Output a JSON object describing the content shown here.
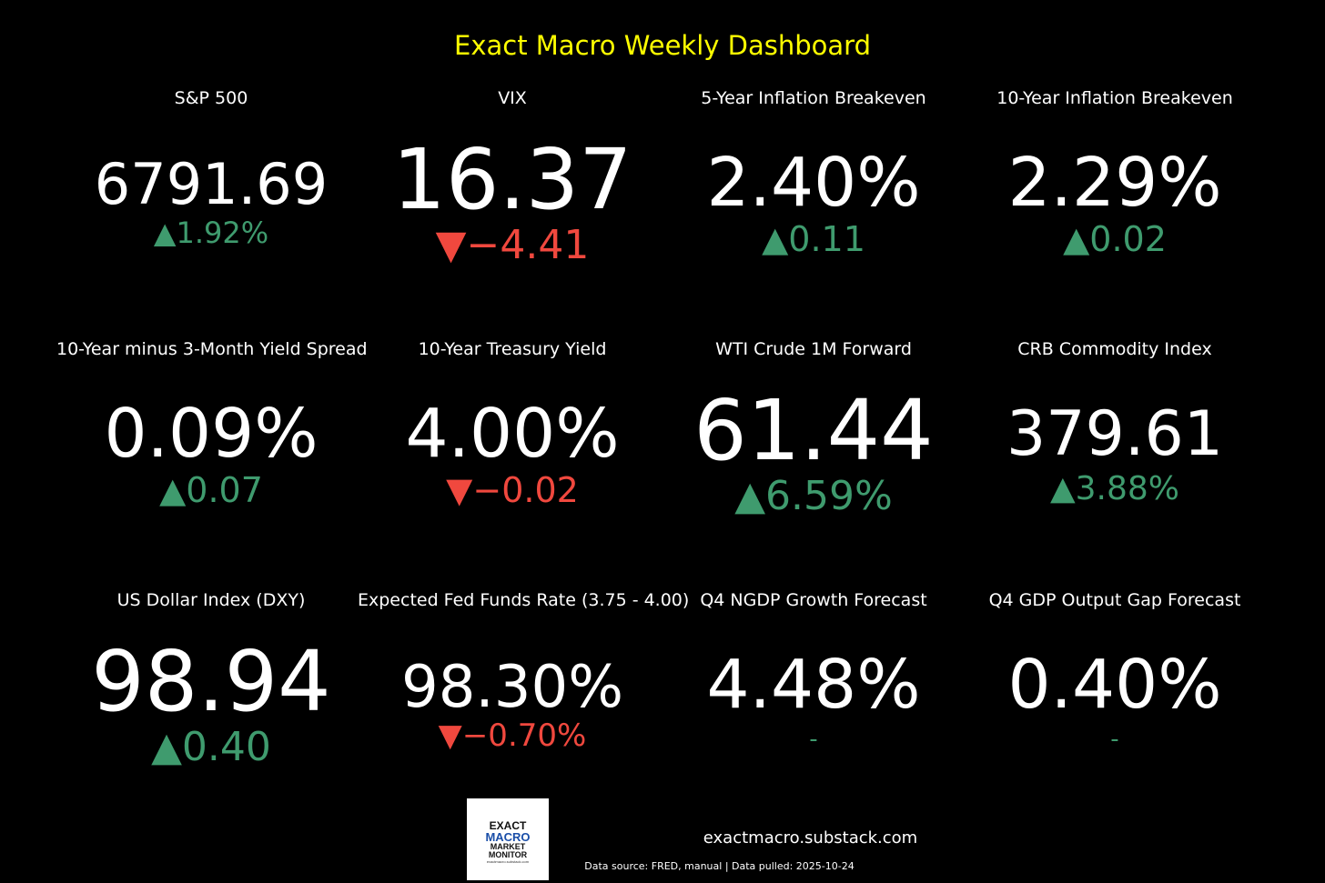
{
  "header": {
    "title": "Exact Macro Weekly Dashboard"
  },
  "tiles": [
    {
      "label": "S&P 500",
      "value": "6791.69",
      "change": "▲1.92%",
      "direction": "up"
    },
    {
      "label": "VIX",
      "value": "16.37",
      "change": "▼−4.41",
      "direction": "down"
    },
    {
      "label": "5-Year Inflation Breakeven",
      "value": "2.40%",
      "change": "▲0.11",
      "direction": "up"
    },
    {
      "label": "10-Year Inflation Breakeven",
      "value": "2.29%",
      "change": "▲0.02",
      "direction": "up"
    },
    {
      "label": "10-Year minus 3-Month Yield Spread",
      "value": "0.09%",
      "change": "▲0.07",
      "direction": "up"
    },
    {
      "label": "10-Year Treasury Yield",
      "value": "4.00%",
      "change": "▼−0.02",
      "direction": "down"
    },
    {
      "label": "WTI Crude 1M Forward",
      "value": "61.44",
      "change": "▲6.59%",
      "direction": "up"
    },
    {
      "label": "CRB Commodity Index",
      "value": "379.61",
      "change": "▲3.88%",
      "direction": "up"
    },
    {
      "label": "US Dollar Index (DXY)",
      "value": "98.94",
      "change": "▲0.40",
      "direction": "up"
    },
    {
      "label": "Expected Fed Funds Rate (3.75 - 4.00)",
      "value": "98.30%",
      "change": "▼−0.70%",
      "direction": "down"
    },
    {
      "label": "Q4 NGDP Growth Forecast",
      "value": "4.48%",
      "change": "-",
      "direction": "flat"
    },
    {
      "label": "Q4 GDP Output Gap Forecast",
      "value": "0.40%",
      "change": "-",
      "direction": "flat"
    }
  ],
  "colors": {
    "background": "#000000",
    "title": "#ffff00",
    "up": "#3f9b6e",
    "down": "#f0483e",
    "text": "#ffffff"
  },
  "footer": {
    "logo": {
      "line1": "EXACT",
      "line2": "MACRO",
      "line3": "MARKET",
      "line4": "MONITOR",
      "url": "exactmacro.substack.com"
    },
    "site": "exactmacro.substack.com",
    "source": "Data source: FRED, manual | Data pulled: 2025-10-24"
  }
}
